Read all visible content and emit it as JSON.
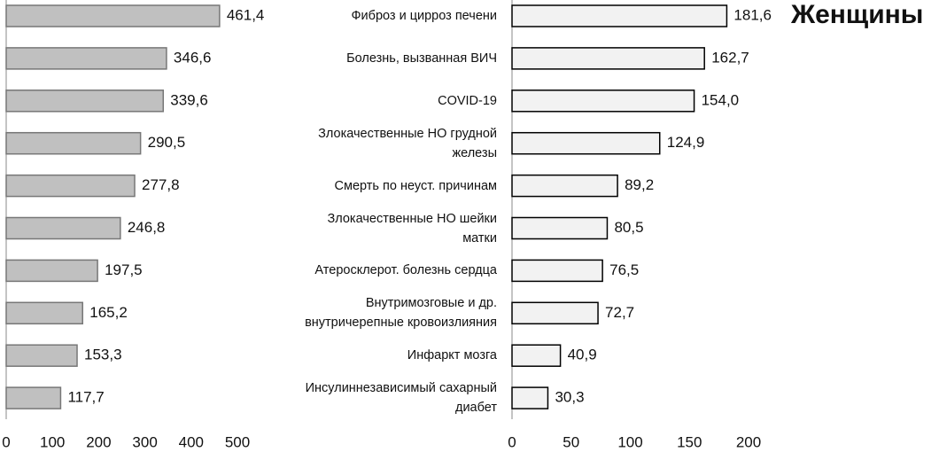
{
  "chart_data": [
    {
      "type": "bar",
      "orientation": "horizontal",
      "values": [
        461.4,
        346.6,
        339.6,
        290.5,
        277.8,
        246.8,
        197.5,
        165.2,
        153.3,
        117.7
      ],
      "value_labels": [
        "461,4",
        "346,6",
        "339,6",
        "290,5",
        "277,8",
        "246,8",
        "197,5",
        "165,2",
        "153,3",
        "117,7"
      ],
      "color": "#c0c0c0",
      "xlim": [
        0,
        500
      ],
      "xticks": [
        0,
        100,
        200,
        300,
        400,
        500
      ]
    },
    {
      "type": "bar",
      "orientation": "horizontal",
      "title": "Женщины",
      "categories": [
        "Фиброз и цирроз печени",
        "Болезнь, вызванная ВИЧ",
        "COVID-19",
        "Злокачественные НО грудной\nжелезы",
        "Смерть по неуст. причинам",
        "Злокачественные НО шейки\nматки",
        "Атеросклерот. болезнь сердца",
        "Внутримозговые и др.\nвнутричерепные кровоизлияния",
        "Инфаркт мозга",
        "Инсулиннезависимый сахарный\nдиабет"
      ],
      "values": [
        181.6,
        162.7,
        154.0,
        124.9,
        89.2,
        80.5,
        76.5,
        72.7,
        40.9,
        30.3
      ],
      "value_labels": [
        "181,6",
        "162,7",
        "154,0",
        "124,9",
        "89,2",
        "80,5",
        "76,5",
        "72,7",
        "40,9",
        "30,3"
      ],
      "color": "#f2f2f2",
      "xlim": [
        0,
        200
      ],
      "xticks": [
        0,
        50,
        100,
        150,
        200
      ]
    }
  ]
}
